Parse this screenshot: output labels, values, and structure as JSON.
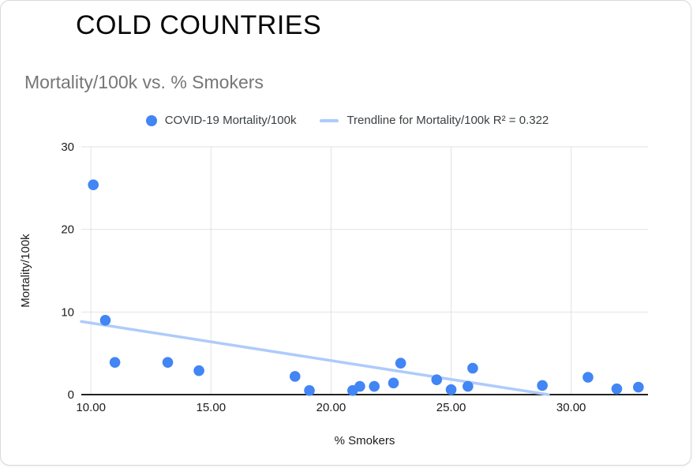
{
  "window": {
    "background": "#ffffff",
    "border_color": "#d9d9d9"
  },
  "header": {
    "title": "COLD COUNTRIES"
  },
  "chart": {
    "title": "Mortality/100k vs. % Smokers",
    "title_color": "#767676",
    "legend": [
      {
        "marker": "circle",
        "label": "COVID-19 Mortality/100k",
        "color": "#4285f4"
      },
      {
        "marker": "line",
        "label": "Trendline for Mortality/100k R² = 0.322",
        "color": "#aecbfa"
      }
    ],
    "x_axis_title": "% Smokers",
    "y_axis_title": "Mortality/100k"
  },
  "chart_data": {
    "type": "scatter",
    "title": "Mortality/100k vs. % Smokers",
    "xlabel": "% Smokers",
    "ylabel": "Mortality/100k",
    "xlim": [
      9.6,
      33.2
    ],
    "ylim": [
      0,
      30
    ],
    "x_ticks": [
      10,
      15,
      20,
      25,
      30
    ],
    "x_tick_labels": [
      "10.00",
      "15.00",
      "20.00",
      "25.00",
      "30.00"
    ],
    "y_ticks": [
      0,
      10,
      20,
      30
    ],
    "y_tick_labels": [
      "0",
      "10",
      "20",
      "30"
    ],
    "grid": true,
    "legend_position": "top",
    "colors": {
      "point": "#4285f4",
      "trendline": "#aecbfa",
      "grid": "#e2e2e2",
      "axis": "#222222",
      "tick": "#1c1c1c"
    },
    "series": [
      {
        "name": "COVID-19 Mortality/100k",
        "type": "scatter",
        "color": "#4285f4",
        "points": [
          [
            10.1,
            25.4
          ],
          [
            10.6,
            9.0
          ],
          [
            11.0,
            3.9
          ],
          [
            13.2,
            3.9
          ],
          [
            14.5,
            2.9
          ],
          [
            18.5,
            2.2
          ],
          [
            19.1,
            0.5
          ],
          [
            20.9,
            0.5
          ],
          [
            21.2,
            1.0
          ],
          [
            21.8,
            1.0
          ],
          [
            22.6,
            1.4
          ],
          [
            22.9,
            3.8
          ],
          [
            24.4,
            1.8
          ],
          [
            25.0,
            0.6
          ],
          [
            25.7,
            1.0
          ],
          [
            25.9,
            3.2
          ],
          [
            28.8,
            1.1
          ],
          [
            30.7,
            2.1
          ],
          [
            31.9,
            0.7
          ],
          [
            32.8,
            0.9
          ]
        ]
      },
      {
        "name": "Trendline for Mortality/100k",
        "type": "trendline",
        "color": "#aecbfa",
        "r_squared": 0.322,
        "endpoints": [
          [
            9.6,
            8.85
          ],
          [
            29.05,
            0
          ]
        ]
      }
    ]
  }
}
